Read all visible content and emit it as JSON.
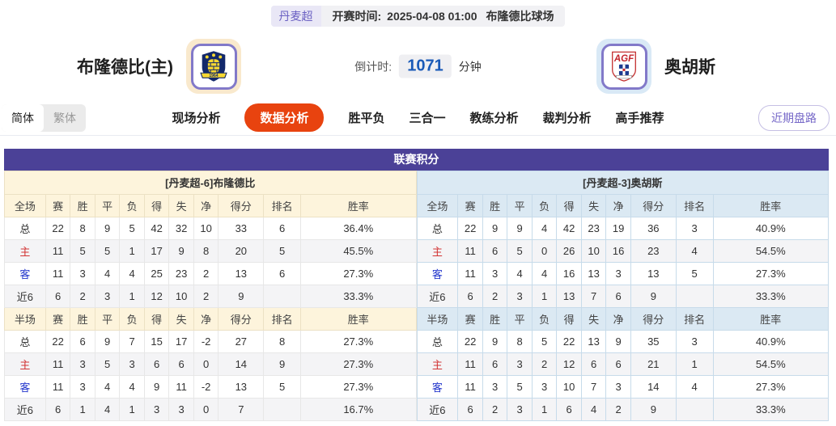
{
  "colors": {
    "accent_purple": "#4b4197",
    "active_tab_orange": "#e8430f",
    "home_panel_bg": "#fdf4dc",
    "away_panel_bg": "#dbe9f3",
    "row_label_home_red": "#d23434",
    "row_label_away_blue": "#2336cc",
    "countdown_blue": "#1a5ab8"
  },
  "top_bar": {
    "league": "丹麦超",
    "kickoff_label": "开赛时间:",
    "kickoff_time": "2025-04-08 01:00",
    "venue": "布隆德比球场"
  },
  "match": {
    "home": {
      "name": "布隆德比(主)",
      "logo_banner_text": "1964"
    },
    "away": {
      "name": "奥胡斯",
      "logo_text": "AGF"
    },
    "countdown": {
      "label": "倒计时:",
      "value": "1071",
      "unit": "分钟"
    }
  },
  "nav": {
    "lang": {
      "simplified": "简体",
      "traditional": "繁体",
      "active": "简体"
    },
    "tabs": [
      {
        "label": "现场分析",
        "active": false
      },
      {
        "label": "数据分析",
        "active": true
      },
      {
        "label": "胜平负",
        "active": false
      },
      {
        "label": "三合一",
        "active": false
      },
      {
        "label": "教练分析",
        "active": false
      },
      {
        "label": "裁判分析",
        "active": false
      },
      {
        "label": "高手推荐",
        "active": false
      }
    ],
    "recent_button": "近期盘路"
  },
  "league_table": {
    "title": "联赛积分",
    "sides": [
      {
        "id": "home",
        "header": "[丹麦超-6]布隆德比",
        "sections": [
          {
            "columns": [
              "全场",
              "赛",
              "胜",
              "平",
              "负",
              "得",
              "失",
              "净",
              "得分",
              "排名",
              "胜率"
            ],
            "rows": [
              {
                "label": "总",
                "values": [
                  "22",
                  "8",
                  "9",
                  "5",
                  "42",
                  "32",
                  "10",
                  "33",
                  "6",
                  "36.4%"
                ]
              },
              {
                "label": "主",
                "values": [
                  "11",
                  "5",
                  "5",
                  "1",
                  "17",
                  "9",
                  "8",
                  "20",
                  "5",
                  "45.5%"
                ]
              },
              {
                "label": "客",
                "values": [
                  "11",
                  "3",
                  "4",
                  "4",
                  "25",
                  "23",
                  "2",
                  "13",
                  "6",
                  "27.3%"
                ]
              },
              {
                "label": "近6",
                "values": [
                  "6",
                  "2",
                  "3",
                  "1",
                  "12",
                  "10",
                  "2",
                  "9",
                  "",
                  "33.3%"
                ]
              }
            ]
          },
          {
            "columns": [
              "半场",
              "赛",
              "胜",
              "平",
              "负",
              "得",
              "失",
              "净",
              "得分",
              "排名",
              "胜率"
            ],
            "rows": [
              {
                "label": "总",
                "values": [
                  "22",
                  "6",
                  "9",
                  "7",
                  "15",
                  "17",
                  "-2",
                  "27",
                  "8",
                  "27.3%"
                ]
              },
              {
                "label": "主",
                "values": [
                  "11",
                  "3",
                  "5",
                  "3",
                  "6",
                  "6",
                  "0",
                  "14",
                  "9",
                  "27.3%"
                ]
              },
              {
                "label": "客",
                "values": [
                  "11",
                  "3",
                  "4",
                  "4",
                  "9",
                  "11",
                  "-2",
                  "13",
                  "5",
                  "27.3%"
                ]
              },
              {
                "label": "近6",
                "values": [
                  "6",
                  "1",
                  "4",
                  "1",
                  "3",
                  "3",
                  "0",
                  "7",
                  "",
                  "16.7%"
                ]
              }
            ]
          }
        ]
      },
      {
        "id": "away",
        "header": "[丹麦超-3]奥胡斯",
        "sections": [
          {
            "columns": [
              "全场",
              "赛",
              "胜",
              "平",
              "负",
              "得",
              "失",
              "净",
              "得分",
              "排名",
              "胜率"
            ],
            "rows": [
              {
                "label": "总",
                "values": [
                  "22",
                  "9",
                  "9",
                  "4",
                  "42",
                  "23",
                  "19",
                  "36",
                  "3",
                  "40.9%"
                ]
              },
              {
                "label": "主",
                "values": [
                  "11",
                  "6",
                  "5",
                  "0",
                  "26",
                  "10",
                  "16",
                  "23",
                  "4",
                  "54.5%"
                ]
              },
              {
                "label": "客",
                "values": [
                  "11",
                  "3",
                  "4",
                  "4",
                  "16",
                  "13",
                  "3",
                  "13",
                  "5",
                  "27.3%"
                ]
              },
              {
                "label": "近6",
                "values": [
                  "6",
                  "2",
                  "3",
                  "1",
                  "13",
                  "7",
                  "6",
                  "9",
                  "",
                  "33.3%"
                ]
              }
            ]
          },
          {
            "columns": [
              "半场",
              "赛",
              "胜",
              "平",
              "负",
              "得",
              "失",
              "净",
              "得分",
              "排名",
              "胜率"
            ],
            "rows": [
              {
                "label": "总",
                "values": [
                  "22",
                  "9",
                  "8",
                  "5",
                  "22",
                  "13",
                  "9",
                  "35",
                  "3",
                  "40.9%"
                ]
              },
              {
                "label": "主",
                "values": [
                  "11",
                  "6",
                  "3",
                  "2",
                  "12",
                  "6",
                  "6",
                  "21",
                  "1",
                  "54.5%"
                ]
              },
              {
                "label": "客",
                "values": [
                  "11",
                  "3",
                  "5",
                  "3",
                  "10",
                  "7",
                  "3",
                  "14",
                  "4",
                  "27.3%"
                ]
              },
              {
                "label": "近6",
                "values": [
                  "6",
                  "2",
                  "3",
                  "1",
                  "6",
                  "4",
                  "2",
                  "9",
                  "",
                  "33.3%"
                ]
              }
            ]
          }
        ]
      }
    ]
  }
}
